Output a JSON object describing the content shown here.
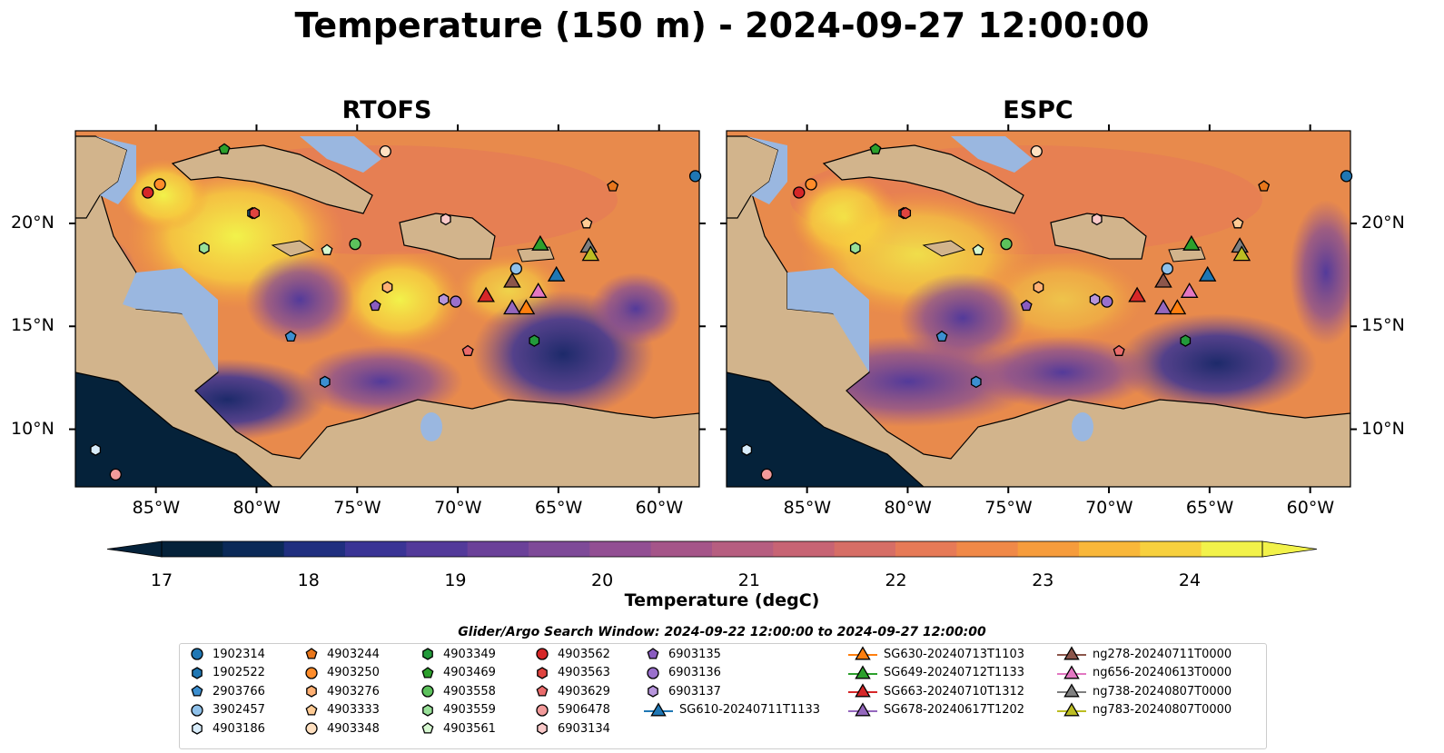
{
  "title": "Temperature (150 m) - 2024-09-27 12:00:00",
  "panels": [
    {
      "title": "RTOFS"
    },
    {
      "title": "ESPC"
    }
  ],
  "x_tick_labels": [
    "85°W",
    "80°W",
    "75°W",
    "70°W",
    "65°W",
    "60°W"
  ],
  "y_tick_labels": [
    "20°N",
    "15°N",
    "10°N"
  ],
  "colorbar": {
    "label": "Temperature (degC)",
    "ticks": [
      "17",
      "18",
      "19",
      "20",
      "21",
      "22",
      "23",
      "24"
    ],
    "colors": [
      "#05223a",
      "#0b2a58",
      "#202f7f",
      "#3a3495",
      "#533a9a",
      "#6b4199",
      "#7e4a98",
      "#924f93",
      "#a55589",
      "#b65e80",
      "#c76474",
      "#d66e66",
      "#e67a57",
      "#f08948",
      "#f69c3c",
      "#f9b73a",
      "#f7d03e",
      "#f2f24a"
    ]
  },
  "legend": {
    "title": "Glider/Argo Search Window: 2024-09-22 12:00:00 to 2024-09-27 12:00:00",
    "columns": [
      [
        {
          "label": "1902314",
          "marker": "circle",
          "color": "#1f77b4"
        },
        {
          "label": "1902522",
          "marker": "hexagon",
          "color": "#1f77b4"
        },
        {
          "label": "2903766",
          "marker": "pentagon",
          "color": "#3c8fd0"
        },
        {
          "label": "3902457",
          "marker": "circle",
          "color": "#8fc1ea"
        },
        {
          "label": "4903186",
          "marker": "hexagon",
          "color": "#d8ecfa"
        }
      ],
      [
        {
          "label": "4903244",
          "marker": "pentagon",
          "color": "#e8761b"
        },
        {
          "label": "4903250",
          "marker": "circle",
          "color": "#ff8c2a"
        },
        {
          "label": "4903276",
          "marker": "hexagon",
          "color": "#ffb073"
        },
        {
          "label": "4903333",
          "marker": "pentagon",
          "color": "#ffcb94"
        },
        {
          "label": "4903348",
          "marker": "circle",
          "color": "#ffe0c0"
        }
      ],
      [
        {
          "label": "4903349",
          "marker": "hexagon",
          "color": "#239a3b"
        },
        {
          "label": "4903469",
          "marker": "pentagon",
          "color": "#2ca02c"
        },
        {
          "label": "4903558",
          "marker": "circle",
          "color": "#5cc15c"
        },
        {
          "label": "4903559",
          "marker": "hexagon",
          "color": "#98e098"
        },
        {
          "label": "4903561",
          "marker": "pentagon",
          "color": "#d6f7d0"
        }
      ],
      [
        {
          "label": "4903562",
          "marker": "circle",
          "color": "#d62728"
        },
        {
          "label": "4903563",
          "marker": "hexagon",
          "color": "#e0443f"
        },
        {
          "label": "4903629",
          "marker": "pentagon",
          "color": "#ea6b6b"
        },
        {
          "label": "5906478",
          "marker": "circle",
          "color": "#f29a9a"
        },
        {
          "label": "6903134",
          "marker": "hexagon",
          "color": "#f9c9c9"
        }
      ],
      [
        {
          "label": "6903135",
          "marker": "pentagon",
          "color": "#8a5cc0"
        },
        {
          "label": "6903136",
          "marker": "circle",
          "color": "#9a70cc"
        },
        {
          "label": "6903137",
          "marker": "hexagon",
          "color": "#b795dc"
        },
        {
          "label": "SG610-20240711T1133",
          "marker": "triangle-line",
          "color": "#1f77b4"
        }
      ],
      [
        {
          "label": "SG630-20240713T1103",
          "marker": "triangle-line",
          "color": "#ff7f0e"
        },
        {
          "label": "SG649-20240712T1133",
          "marker": "triangle-line",
          "color": "#2ca02c"
        },
        {
          "label": "SG663-20240710T1312",
          "marker": "triangle-line",
          "color": "#d62728"
        },
        {
          "label": "SG678-20240617T1202",
          "marker": "triangle-line",
          "color": "#9467bd"
        }
      ],
      [
        {
          "label": "ng278-20240711T0000",
          "marker": "triangle-line",
          "color": "#8c564b"
        },
        {
          "label": "ng656-20240613T0000",
          "marker": "triangle-line",
          "color": "#e377c2"
        },
        {
          "label": "ng738-20240807T0000",
          "marker": "triangle-line",
          "color": "#7f7f7f"
        },
        {
          "label": "ng783-20240807T0000",
          "marker": "triangle-line",
          "color": "#bcbd22"
        }
      ]
    ]
  },
  "chart_data": [
    {
      "type": "heatmap",
      "title": "RTOFS",
      "xlim": [
        -89,
        -58
      ],
      "ylim": [
        7.2,
        24.5
      ],
      "x_ticks": [
        -85,
        -80,
        -75,
        -70,
        -65,
        -60
      ],
      "y_ticks": [
        20,
        15,
        10
      ],
      "land_color": "#d2b48c",
      "shelf_color": "#9ab7e0",
      "floats": [
        {
          "id": "1902314",
          "lon": -58.2,
          "lat": 22.3
        },
        {
          "id": "1902522",
          "lon": -80.2,
          "lat": 20.5
        },
        {
          "id": "2903766",
          "lon": -78.3,
          "lat": 14.5
        },
        {
          "id": "3902457",
          "lon": -67.1,
          "lat": 17.8
        },
        {
          "id": "4903186",
          "lon": -88.0,
          "lat": 9.0
        },
        {
          "id": "4903244",
          "lon": -62.3,
          "lat": 21.8
        },
        {
          "id": "4903250",
          "lon": -84.8,
          "lat": 21.9
        },
        {
          "id": "4903276",
          "lon": -73.5,
          "lat": 16.9
        },
        {
          "id": "4903333",
          "lon": -63.6,
          "lat": 20.0
        },
        {
          "id": "4903348",
          "lon": -73.6,
          "lat": 23.5
        },
        {
          "id": "4903349",
          "lon": -66.2,
          "lat": 14.3
        },
        {
          "id": "4903469",
          "lon": -81.6,
          "lat": 23.6
        },
        {
          "id": "4903558",
          "lon": -75.1,
          "lat": 19.0
        },
        {
          "id": "4903559",
          "lon": -82.6,
          "lat": 18.8
        },
        {
          "id": "4903561",
          "lon": -76.5,
          "lat": 18.7
        },
        {
          "id": "4903562",
          "lon": -85.4,
          "lat": 21.5
        },
        {
          "id": "4903563",
          "lon": -80.1,
          "lat": 20.5
        },
        {
          "id": "4903629",
          "lon": -69.5,
          "lat": 13.8
        },
        {
          "id": "5906478",
          "lon": -87.0,
          "lat": 7.8
        },
        {
          "id": "6903134",
          "lon": -70.6,
          "lat": 20.2
        },
        {
          "id": "6903135",
          "lon": -74.1,
          "lat": 16.0
        },
        {
          "id": "6903136",
          "lon": -70.1,
          "lat": 16.2
        },
        {
          "id": "6903137",
          "lon": -70.7,
          "lat": 16.3
        },
        {
          "id": "4903186b",
          "lon": -76.6,
          "lat": 12.3
        }
      ],
      "gliders": [
        {
          "id": "SG610-20240711T1133",
          "lon": -65.1,
          "lat": 17.5
        },
        {
          "id": "SG630-20240713T1103",
          "lon": -66.6,
          "lat": 15.9
        },
        {
          "id": "SG649-20240712T1133",
          "lon": -65.9,
          "lat": 19.0
        },
        {
          "id": "SG663-20240710T1312",
          "lon": -68.6,
          "lat": 16.5
        },
        {
          "id": "SG678-20240617T1202",
          "lon": -67.3,
          "lat": 15.9
        },
        {
          "id": "ng278-20240711T0000",
          "lon": -67.3,
          "lat": 17.2
        },
        {
          "id": "ng656-20240613T0000",
          "lon": -66.0,
          "lat": 16.7
        },
        {
          "id": "ng738-20240807T0000",
          "lon": -63.5,
          "lat": 18.9
        },
        {
          "id": "ng783-20240807T0000",
          "lon": -63.4,
          "lat": 18.5
        }
      ]
    },
    {
      "type": "heatmap",
      "title": "ESPC",
      "xlim": [
        -89,
        -58
      ],
      "ylim": [
        7.2,
        24.5
      ],
      "x_ticks": [
        -85,
        -80,
        -75,
        -70,
        -65,
        -60
      ],
      "y_ticks": [
        20,
        15,
        10
      ],
      "land_color": "#d2b48c",
      "shelf_color": "#9ab7e0"
    }
  ]
}
